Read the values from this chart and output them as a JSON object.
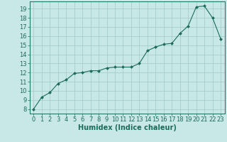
{
  "x": [
    0,
    1,
    2,
    3,
    4,
    5,
    6,
    7,
    8,
    9,
    10,
    11,
    12,
    13,
    14,
    15,
    16,
    17,
    18,
    19,
    20,
    21,
    22,
    23
  ],
  "y": [
    8.0,
    9.3,
    9.8,
    10.8,
    11.2,
    11.9,
    12.0,
    12.2,
    12.2,
    12.5,
    12.6,
    12.6,
    12.6,
    13.0,
    14.4,
    14.8,
    15.1,
    15.2,
    16.3,
    17.1,
    19.2,
    19.3,
    18.0,
    15.7
  ],
  "xlabel": "Humidex (Indice chaleur)",
  "xlim": [
    -0.5,
    23.5
  ],
  "ylim": [
    7.5,
    19.8
  ],
  "yticks": [
    8,
    9,
    10,
    11,
    12,
    13,
    14,
    15,
    16,
    17,
    18,
    19
  ],
  "xticks": [
    0,
    1,
    2,
    3,
    4,
    5,
    6,
    7,
    8,
    9,
    10,
    11,
    12,
    13,
    14,
    15,
    16,
    17,
    18,
    19,
    20,
    21,
    22,
    23
  ],
  "line_color": "#1a6b5a",
  "marker_color": "#1a6b5a",
  "bg_color": "#c8e8e8",
  "grid_color": "#a0c8c8",
  "label_color": "#1a6b5a",
  "tick_color": "#1a6b5a",
  "label_fontsize": 7.0,
  "tick_fontsize": 6.0
}
